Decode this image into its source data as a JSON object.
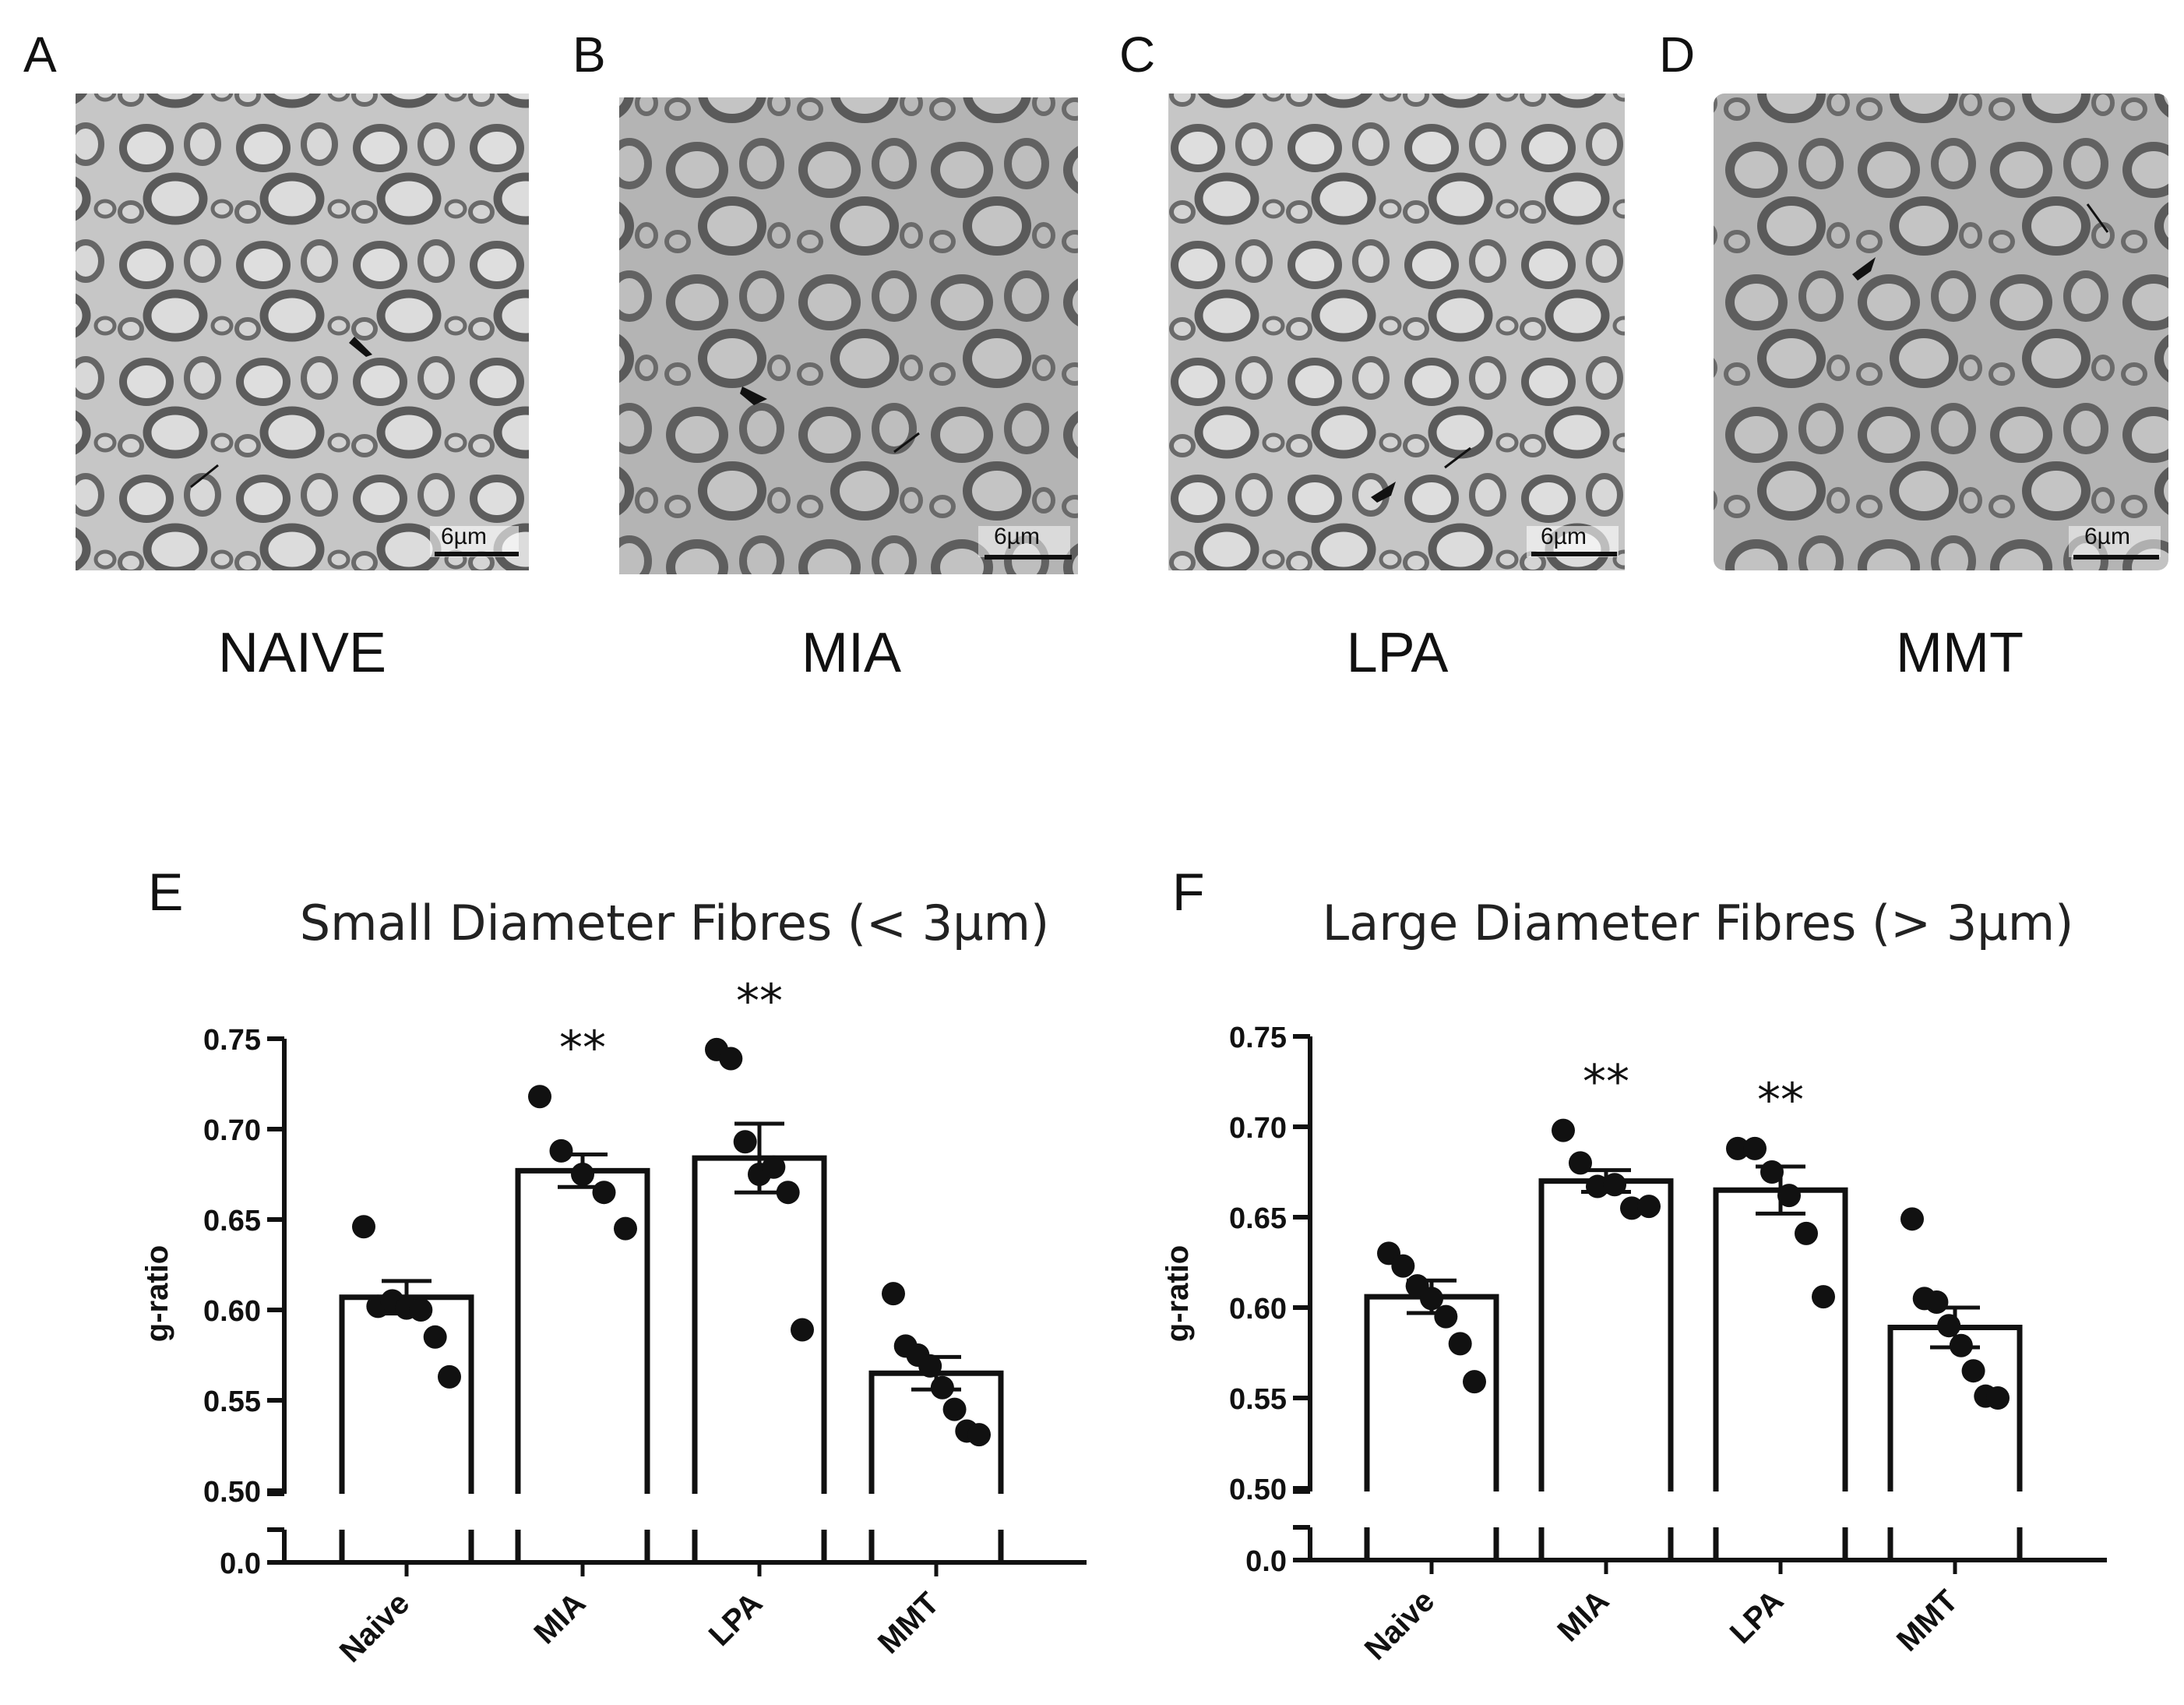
{
  "micrographs": [
    {
      "letter": "A",
      "group": "NAIVE",
      "scale_bar": "6µm"
    },
    {
      "letter": "B",
      "group": "MIA",
      "scale_bar": "6µm"
    },
    {
      "letter": "C",
      "group": "LPA",
      "scale_bar": "6µm"
    },
    {
      "letter": "D",
      "group": "MMT",
      "scale_bar": "6µm"
    }
  ],
  "chart_data": [
    {
      "panel": "E",
      "type": "bar",
      "title": "Small Diameter Fibres (< 3µm)",
      "xlabel": "",
      "ylabel": "g-ratio",
      "ylim": [
        0.5,
        0.75
      ],
      "broken_axis": {
        "lower_tick": "0.0"
      },
      "y_ticks": [
        "0.50",
        "0.55",
        "0.60",
        "0.65",
        "0.70",
        "0.75"
      ],
      "categories": [
        "Naive",
        "MIA",
        "LPA",
        "MMT"
      ],
      "values": [
        0.607,
        0.677,
        0.684,
        0.565
      ],
      "sem": [
        0.009,
        0.009,
        0.019,
        0.009
      ],
      "points": [
        [
          0.646,
          0.602,
          0.605,
          0.601,
          0.6,
          0.585,
          0.563
        ],
        [
          0.718,
          0.688,
          0.675,
          0.665,
          0.645
        ],
        [
          0.744,
          0.739,
          0.693,
          0.675,
          0.679,
          0.665,
          0.589
        ],
        [
          0.609,
          0.58,
          0.575,
          0.569,
          0.557,
          0.545,
          0.533,
          0.531
        ]
      ],
      "significance": [
        "",
        "**",
        "**",
        ""
      ]
    },
    {
      "panel": "F",
      "type": "bar",
      "title": "Large Diameter Fibres (> 3µm)",
      "xlabel": "",
      "ylabel": "g-ratio",
      "ylim": [
        0.5,
        0.75
      ],
      "broken_axis": {
        "lower_tick": "0.0"
      },
      "y_ticks": [
        "0.50",
        "0.55",
        "0.60",
        "0.65",
        "0.70",
        "0.75"
      ],
      "categories": [
        "Naive",
        "MIA",
        "LPA",
        "MMT"
      ],
      "values": [
        0.606,
        0.67,
        0.665,
        0.589
      ],
      "sem": [
        0.009,
        0.006,
        0.013,
        0.011
      ],
      "points": [
        [
          0.63,
          0.623,
          0.612,
          0.605,
          0.595,
          0.58,
          0.559
        ],
        [
          0.698,
          0.68,
          0.667,
          0.668,
          0.655,
          0.656
        ],
        [
          0.688,
          0.688,
          0.675,
          0.662,
          0.641,
          0.606
        ],
        [
          0.649,
          0.605,
          0.603,
          0.59,
          0.579,
          0.565,
          0.551,
          0.55
        ]
      ],
      "significance": [
        "",
        "**",
        "**",
        ""
      ]
    }
  ]
}
